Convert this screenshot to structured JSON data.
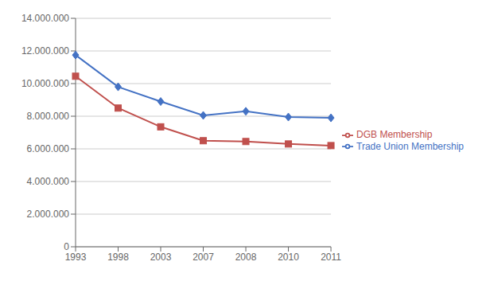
{
  "chart_data": {
    "type": "line",
    "categories": [
      "1993",
      "1998",
      "2003",
      "2007",
      "2008",
      "2010",
      "2011"
    ],
    "series": [
      {
        "name": "Trade Union Membership",
        "color": "#4472C4",
        "marker": "diamond",
        "values": [
          11750000,
          9800000,
          8900000,
          8050000,
          8300000,
          7950000,
          7900000
        ]
      },
      {
        "name": "DGB Membership",
        "color": "#C0504D",
        "marker": "square",
        "values": [
          10450000,
          8500000,
          7350000,
          6500000,
          6450000,
          6300000,
          6200000
        ]
      }
    ],
    "ylim": [
      0,
      14000000
    ],
    "yticks": [
      0,
      {
        "value": 2000000,
        "label": "2.000.000"
      },
      {
        "value": 4000000,
        "label": "4.000.000"
      },
      {
        "value": 6000000,
        "label": "6.000.000"
      },
      {
        "value": 8000000,
        "label": "8.000.000"
      },
      {
        "value": 10000000,
        "label": "10.000.000"
      },
      {
        "value": 12000000,
        "label": "12.000.000"
      },
      {
        "value": 14000000,
        "label": "14.000.000"
      }
    ],
    "grid": true,
    "legend": "right"
  }
}
